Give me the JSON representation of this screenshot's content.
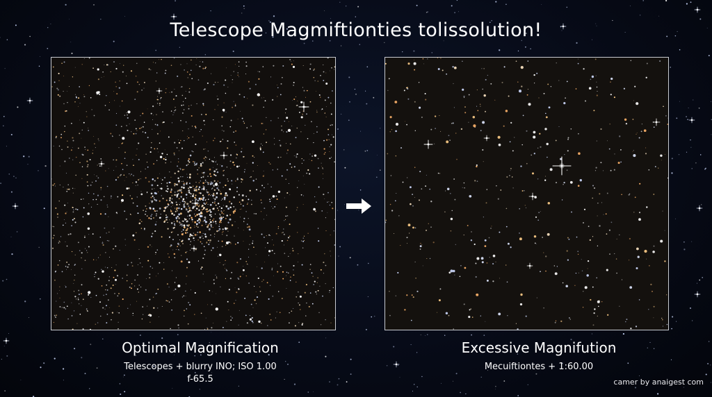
{
  "title": "Telescope Magmiftionties tolissolution!",
  "arrow_icon": "right-arrow-icon",
  "panels": {
    "left": {
      "caption_title": "Optiımal Magnification",
      "caption_line1": "Telescopes  + blurry INO; ISO 1.00",
      "caption_line2": "f-65.5"
    },
    "right": {
      "caption_title": "Excessive Magnifution",
      "caption_line1": "Mecuiftiontes + 1:60.00"
    }
  },
  "credit": "camer by anaigest com",
  "colors": {
    "background": "#05070f",
    "panel_frame": "#c9ccd2",
    "panel_fill": "#120f0d",
    "text": "#ffffff"
  }
}
